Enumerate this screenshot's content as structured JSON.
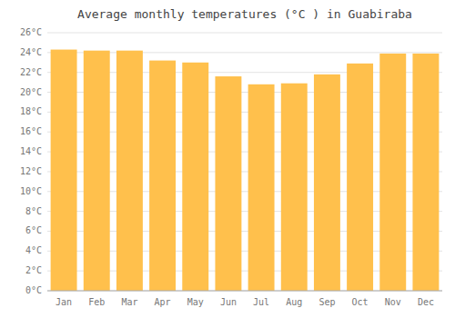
{
  "chart_data": {
    "type": "bar",
    "title": "Average monthly temperatures (°C ) in Guabiraba",
    "categories": [
      "Jan",
      "Feb",
      "Mar",
      "Apr",
      "May",
      "Jun",
      "Jul",
      "Aug",
      "Sep",
      "Oct",
      "Nov",
      "Dec"
    ],
    "values": [
      24.3,
      24.2,
      24.2,
      23.2,
      23.0,
      21.6,
      20.8,
      20.9,
      21.8,
      22.9,
      23.9,
      23.9
    ],
    "color": "#FFC04C",
    "ylim": [
      0,
      26
    ],
    "yticks": [
      {
        "value": 0,
        "label": "0°C"
      },
      {
        "value": 2,
        "label": "2°C"
      },
      {
        "value": 4,
        "label": "4°C"
      },
      {
        "value": 6,
        "label": "6°C"
      },
      {
        "value": 8,
        "label": "8°C"
      },
      {
        "value": 10,
        "label": "10°C"
      },
      {
        "value": 12,
        "label": "12°C"
      },
      {
        "value": 14,
        "label": "14°C"
      },
      {
        "value": 16,
        "label": "16°C"
      },
      {
        "value": 18,
        "label": "18°C"
      },
      {
        "value": 20,
        "label": "20°C"
      },
      {
        "value": 22,
        "label": "22°C"
      },
      {
        "value": 24,
        "label": "24°C"
      },
      {
        "value": 26,
        "label": "26°C"
      }
    ],
    "grid": true
  }
}
